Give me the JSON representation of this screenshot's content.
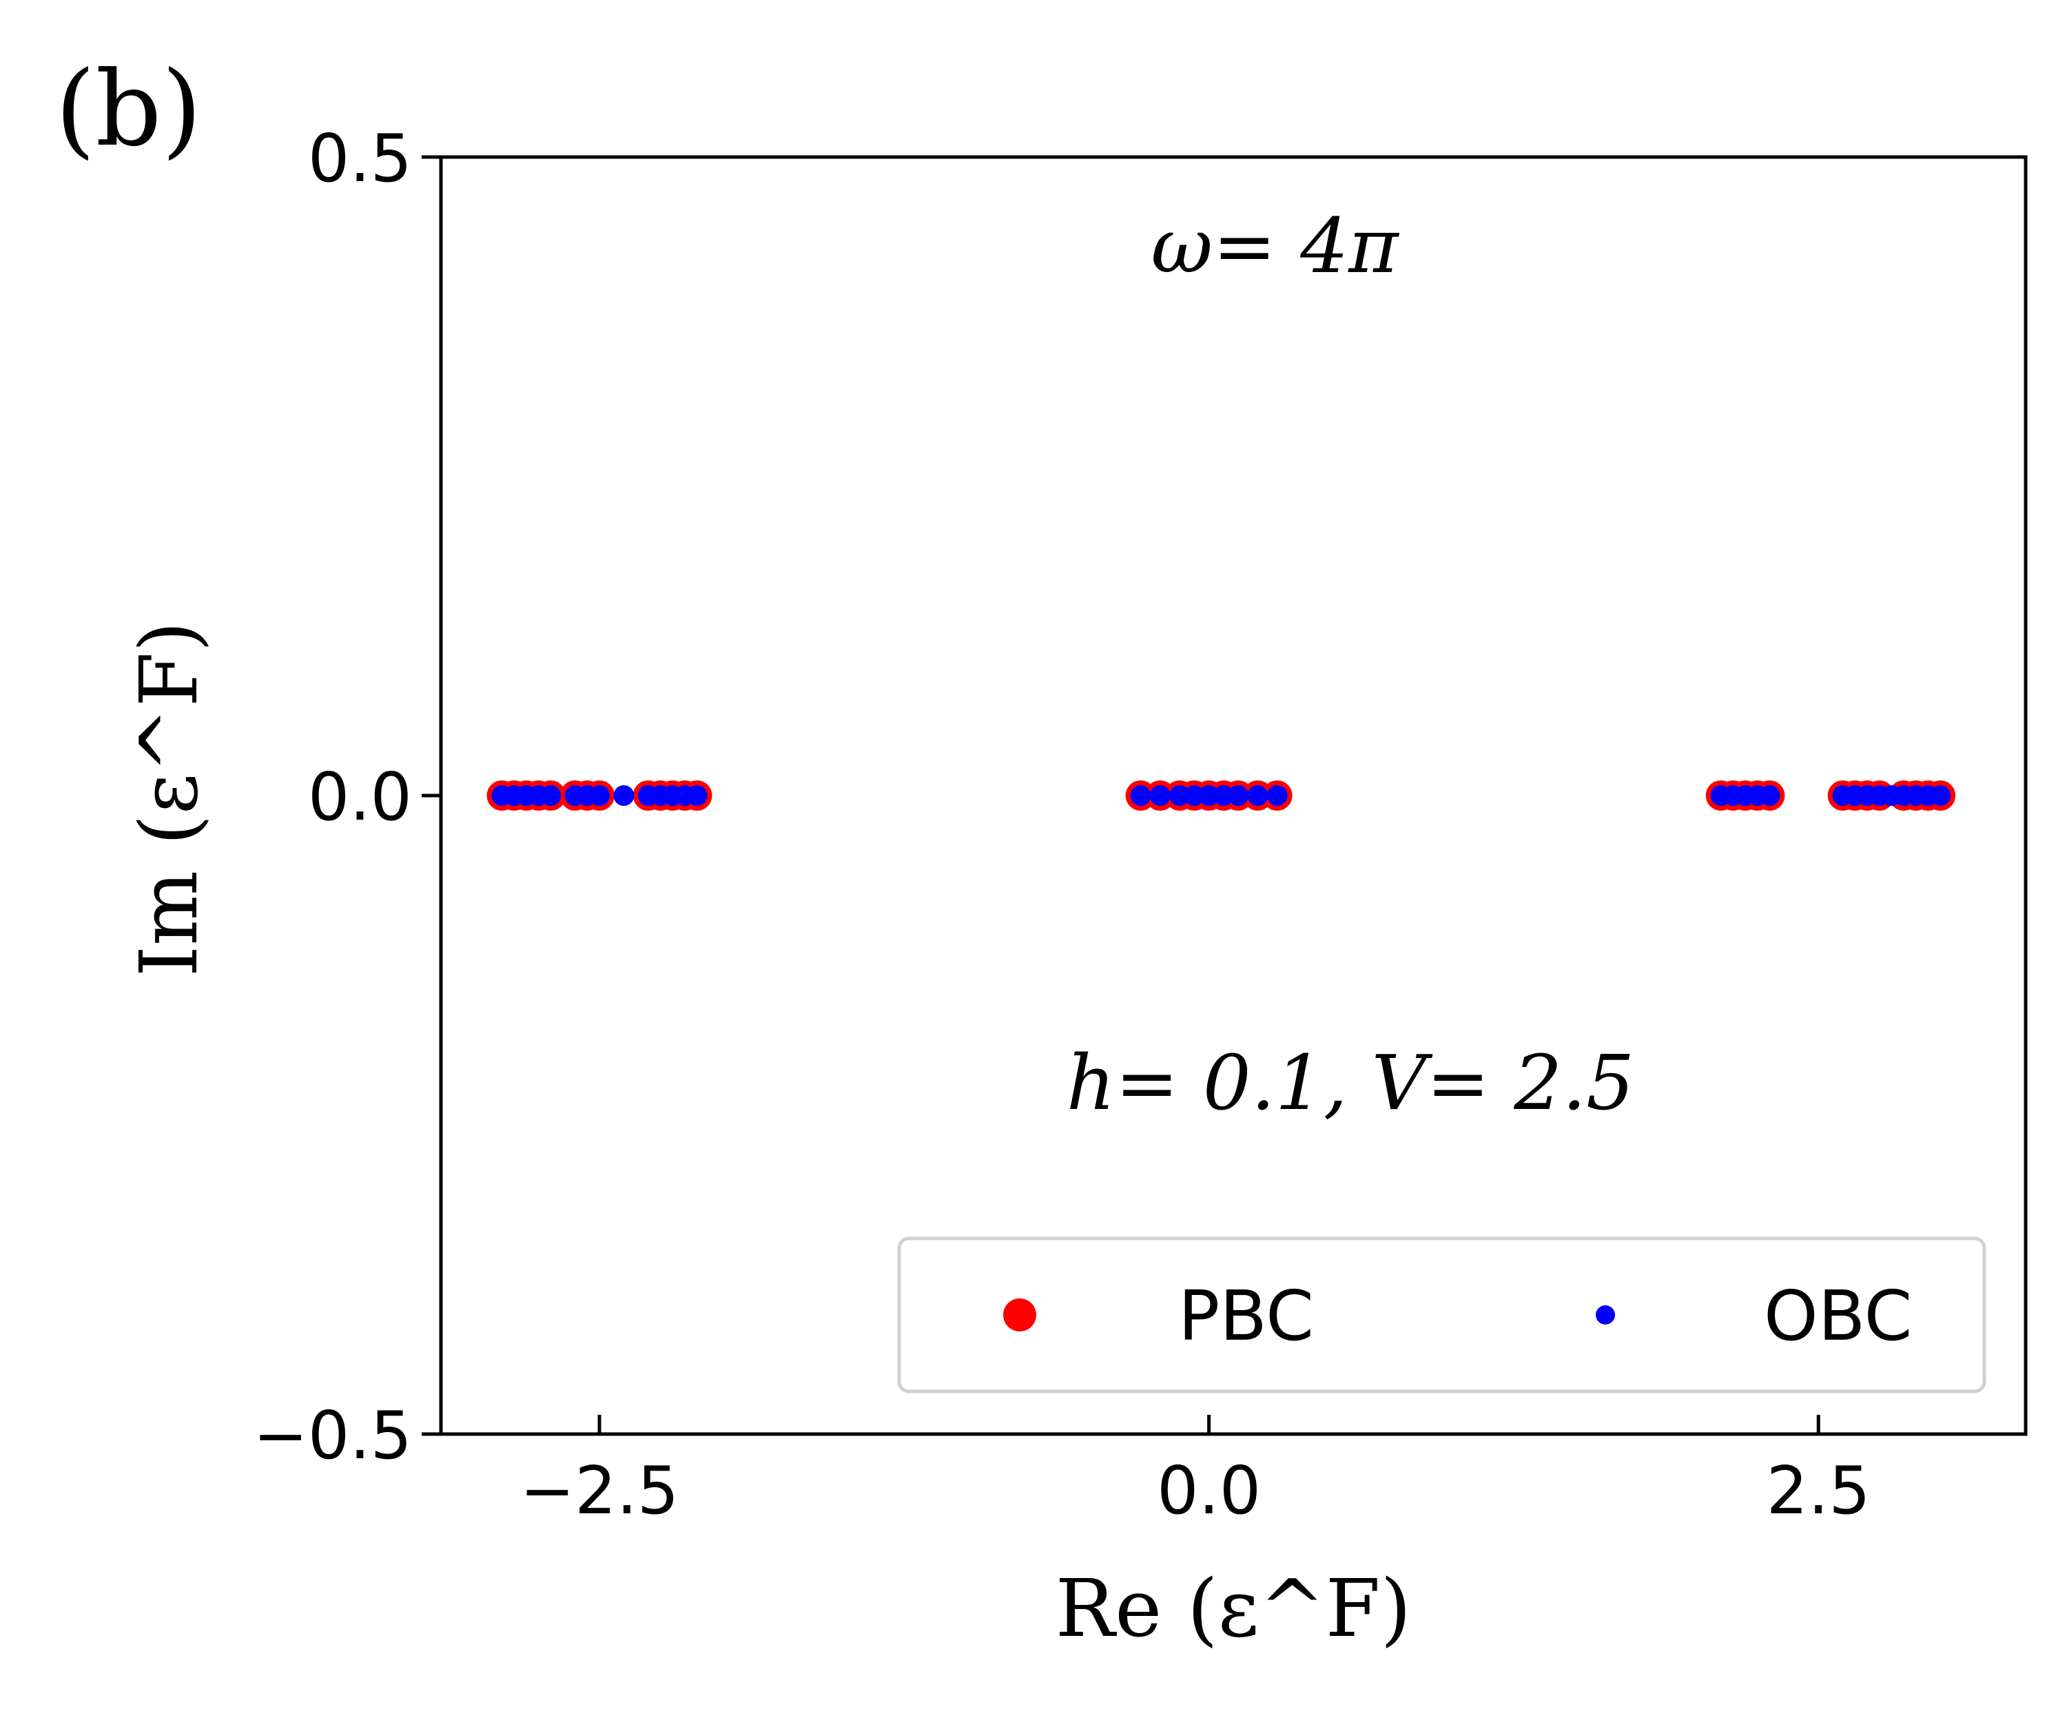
{
  "chart_data": {
    "type": "scatter",
    "panel_label": "(b)",
    "xlabel": "Re (ε^F)",
    "ylabel": "Im (ε^F)",
    "xlim": [
      -3.15,
      3.35
    ],
    "ylim": [
      -0.5,
      0.5
    ],
    "x_ticks": [
      -2.5,
      0.0,
      2.5
    ],
    "x_tick_labels": [
      "−2.5",
      "0.0",
      "2.5"
    ],
    "y_ticks": [
      -0.5,
      0.0,
      0.5
    ],
    "y_tick_labels": [
      "−0.5",
      "0.0",
      "0.5"
    ],
    "annotations": {
      "omega": "ω= 4π",
      "params": "h= 0.1, V= 2.5"
    },
    "legend_position": "lower-right",
    "grid": false,
    "series": [
      {
        "name": "PBC",
        "color": "#ff0000",
        "marker": "large-dot",
        "points": [
          [
            -2.9,
            0
          ],
          [
            -2.85,
            0
          ],
          [
            -2.8,
            0
          ],
          [
            -2.75,
            0
          ],
          [
            -2.7,
            0
          ],
          [
            -2.6,
            0
          ],
          [
            -2.55,
            0
          ],
          [
            -2.5,
            0
          ],
          [
            -2.3,
            0
          ],
          [
            -2.25,
            0
          ],
          [
            -2.2,
            0
          ],
          [
            -2.15,
            0
          ],
          [
            -2.1,
            0
          ],
          [
            -0.28,
            0
          ],
          [
            -0.2,
            0
          ],
          [
            -0.12,
            0
          ],
          [
            -0.06,
            0
          ],
          [
            0.0,
            0
          ],
          [
            0.06,
            0
          ],
          [
            0.12,
            0
          ],
          [
            0.2,
            0
          ],
          [
            0.28,
            0
          ],
          [
            2.1,
            0
          ],
          [
            2.15,
            0
          ],
          [
            2.2,
            0
          ],
          [
            2.25,
            0
          ],
          [
            2.3,
            0
          ],
          [
            2.6,
            0
          ],
          [
            2.65,
            0
          ],
          [
            2.7,
            0
          ],
          [
            2.75,
            0
          ],
          [
            2.85,
            0
          ],
          [
            2.9,
            0
          ],
          [
            2.95,
            0
          ],
          [
            3.0,
            0
          ]
        ]
      },
      {
        "name": "OBC",
        "color": "#0000ff",
        "marker": "small-dot",
        "points": [
          [
            -2.9,
            0
          ],
          [
            -2.85,
            0
          ],
          [
            -2.8,
            0
          ],
          [
            -2.75,
            0
          ],
          [
            -2.7,
            0
          ],
          [
            -2.6,
            0
          ],
          [
            -2.55,
            0
          ],
          [
            -2.5,
            0
          ],
          [
            -2.4,
            0
          ],
          [
            -2.3,
            0
          ],
          [
            -2.25,
            0
          ],
          [
            -2.2,
            0
          ],
          [
            -2.15,
            0
          ],
          [
            -2.1,
            0
          ],
          [
            -0.28,
            0
          ],
          [
            -0.2,
            0
          ],
          [
            -0.12,
            0
          ],
          [
            -0.06,
            0
          ],
          [
            0.0,
            0
          ],
          [
            0.06,
            0
          ],
          [
            0.12,
            0
          ],
          [
            0.2,
            0
          ],
          [
            0.28,
            0
          ],
          [
            2.1,
            0
          ],
          [
            2.15,
            0
          ],
          [
            2.2,
            0
          ],
          [
            2.25,
            0
          ],
          [
            2.3,
            0
          ],
          [
            2.6,
            0
          ],
          [
            2.65,
            0
          ],
          [
            2.7,
            0
          ],
          [
            2.75,
            0
          ],
          [
            2.8,
            0
          ],
          [
            2.85,
            0
          ],
          [
            2.9,
            0
          ],
          [
            2.95,
            0
          ],
          [
            3.0,
            0
          ]
        ]
      }
    ]
  }
}
